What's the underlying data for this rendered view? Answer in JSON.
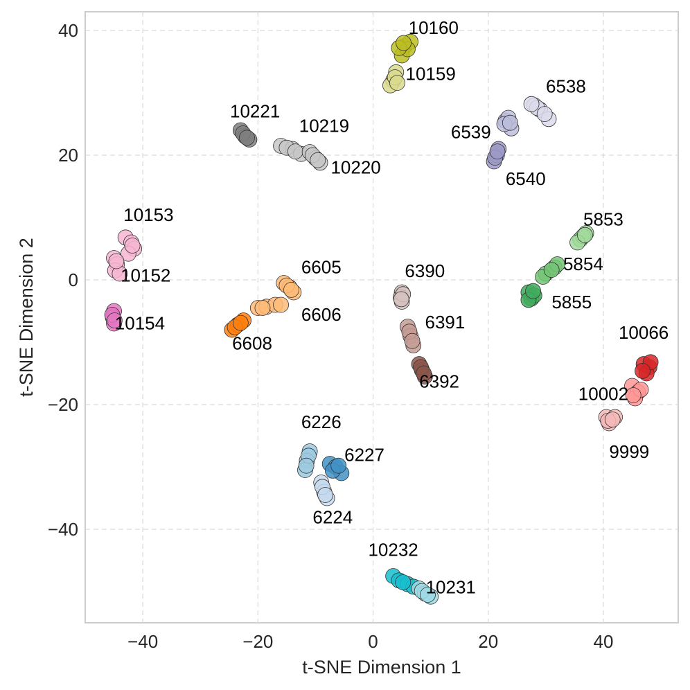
{
  "chart_data": {
    "type": "scatter",
    "title": "",
    "xlabel": "t-SNE Dimension 1",
    "ylabel": "t-SNE Dimension 2",
    "xlim": [
      -50,
      53
    ],
    "ylim": [
      -55,
      43
    ],
    "xticks": [
      -40,
      -20,
      0,
      20,
      40
    ],
    "yticks": [
      -40,
      -20,
      0,
      20,
      40
    ],
    "grid": true,
    "legend": "none",
    "series": [
      {
        "name": "10160",
        "color": "#bcbd22",
        "label_at": [
          10.5,
          40.2
        ],
        "points": [
          [
            5.5,
            37.5
          ],
          [
            6.5,
            38.2
          ],
          [
            5.0,
            36.0
          ],
          [
            6.0,
            37.0
          ],
          [
            4.5,
            37.2
          ],
          [
            5.3,
            38.0
          ]
        ]
      },
      {
        "name": "10159",
        "color": "#dbdb8d",
        "label_at": [
          10.0,
          32.8
        ],
        "points": [
          [
            3.5,
            32.0
          ],
          [
            4.0,
            33.3
          ],
          [
            3.0,
            31.2
          ],
          [
            3.8,
            32.5
          ],
          [
            4.2,
            31.6
          ]
        ]
      },
      {
        "name": "6538",
        "color": "#dadaeb",
        "label_at": [
          33.5,
          30.8
        ],
        "points": [
          [
            28.0,
            28.0
          ],
          [
            29.0,
            27.3
          ],
          [
            30.5,
            25.8
          ],
          [
            28.5,
            27.6
          ],
          [
            29.8,
            26.6
          ],
          [
            27.5,
            28.2
          ]
        ]
      },
      {
        "name": "6539",
        "color": "#bcbddc",
        "label_at": [
          17.0,
          23.5
        ],
        "points": [
          [
            23.0,
            25.5
          ],
          [
            24.0,
            24.3
          ],
          [
            23.5,
            26.0
          ],
          [
            22.8,
            25.0
          ],
          [
            23.8,
            25.2
          ]
        ]
      },
      {
        "name": "6540",
        "color": "#9e9ac8",
        "label_at": [
          26.5,
          16.0
        ],
        "points": [
          [
            21.0,
            19.0
          ],
          [
            21.5,
            20.0
          ],
          [
            21.8,
            21.0
          ],
          [
            21.2,
            19.6
          ],
          [
            21.6,
            20.6
          ]
        ]
      },
      {
        "name": "10221",
        "color": "#7f7f7f",
        "label_at": [
          -20.5,
          26.8
        ],
        "points": [
          [
            -23.0,
            24.0
          ],
          [
            -22.2,
            23.0
          ],
          [
            -21.5,
            22.5
          ],
          [
            -22.6,
            23.5
          ],
          [
            -21.9,
            22.8
          ]
        ]
      },
      {
        "name": "10219",
        "color": "#c7c7c7",
        "label_at": [
          -8.5,
          24.5
        ],
        "points": [
          [
            -16.0,
            21.5
          ],
          [
            -14.0,
            21.0
          ],
          [
            -12.5,
            20.2
          ],
          [
            -15.0,
            21.2
          ],
          [
            -13.5,
            20.6
          ]
        ]
      },
      {
        "name": "10220",
        "color": "#c7c7c7",
        "label_at": [
          -3.0,
          17.8
        ],
        "points": [
          [
            -11.0,
            20.5
          ],
          [
            -10.0,
            19.5
          ],
          [
            -9.2,
            18.8
          ],
          [
            -10.5,
            20.0
          ],
          [
            -9.6,
            19.2
          ]
        ]
      },
      {
        "name": "10153",
        "color": "#f7b6d2",
        "label_at": [
          -39.0,
          10.2
        ],
        "points": [
          [
            -43.0,
            6.8
          ],
          [
            -42.0,
            6.0
          ],
          [
            -41.5,
            5.0
          ],
          [
            -42.5,
            4.2
          ],
          [
            -41.8,
            5.5
          ]
        ]
      },
      {
        "name": "10152",
        "color": "#f7b6d2",
        "label_at": [
          -39.5,
          0.5
        ],
        "points": [
          [
            -45.0,
            3.5
          ],
          [
            -44.5,
            2.5
          ],
          [
            -44.8,
            1.5
          ],
          [
            -44.0,
            1.0
          ],
          [
            -44.6,
            3.0
          ]
        ]
      },
      {
        "name": "10154",
        "color": "#e377c2",
        "label_at": [
          -40.5,
          -7.2
        ],
        "points": [
          [
            -45.0,
            -5.0
          ],
          [
            -45.2,
            -6.0
          ],
          [
            -45.0,
            -7.0
          ],
          [
            -45.3,
            -5.6
          ],
          [
            -44.9,
            -6.5
          ]
        ]
      },
      {
        "name": "6605",
        "color": "#ffbb78",
        "label_at": [
          -9.0,
          1.8
        ],
        "points": [
          [
            -15.5,
            -0.5
          ],
          [
            -14.5,
            -1.2
          ],
          [
            -13.8,
            -2.0
          ],
          [
            -15.0,
            -0.9
          ],
          [
            -14.2,
            -1.6
          ]
        ]
      },
      {
        "name": "6606",
        "color": "#ffbb78",
        "label_at": [
          -9.0,
          -5.8
        ],
        "points": [
          [
            -20.0,
            -4.5
          ],
          [
            -18.5,
            -4.3
          ],
          [
            -17.0,
            -4.0
          ],
          [
            -16.0,
            -4.0
          ],
          [
            -19.2,
            -4.5
          ]
        ]
      },
      {
        "name": "6608",
        "color": "#ff7f0e",
        "label_at": [
          -21.0,
          -10.4
        ],
        "points": [
          [
            -24.5,
            -8.0
          ],
          [
            -23.5,
            -7.2
          ],
          [
            -22.5,
            -6.5
          ],
          [
            -24.0,
            -7.6
          ],
          [
            -23.0,
            -6.9
          ]
        ]
      },
      {
        "name": "6390",
        "color": "#d6c2be",
        "label_at": [
          9.0,
          1.2
        ],
        "points": [
          [
            5.0,
            -2.0
          ],
          [
            4.8,
            -2.8
          ],
          [
            5.0,
            -3.5
          ],
          [
            5.2,
            -2.3
          ],
          [
            4.9,
            -3.1
          ]
        ]
      },
      {
        "name": "6391",
        "color": "#c49c94",
        "label_at": [
          12.5,
          -7.0
        ],
        "points": [
          [
            6.0,
            -7.5
          ],
          [
            6.5,
            -9.0
          ],
          [
            7.0,
            -10.5
          ],
          [
            6.3,
            -8.3
          ],
          [
            6.8,
            -9.8
          ]
        ]
      },
      {
        "name": "6392",
        "color": "#8c564b",
        "label_at": [
          11.5,
          -16.5
        ],
        "points": [
          [
            8.0,
            -13.5
          ],
          [
            8.5,
            -14.5
          ],
          [
            9.0,
            -15.5
          ],
          [
            8.3,
            -14.0
          ],
          [
            8.8,
            -15.0
          ]
        ]
      },
      {
        "name": "5853",
        "color": "#a1d99b",
        "label_at": [
          40.0,
          9.5
        ],
        "points": [
          [
            36.0,
            6.5
          ],
          [
            37.0,
            7.5
          ],
          [
            36.5,
            7.0
          ],
          [
            35.5,
            6.0
          ],
          [
            36.8,
            7.2
          ]
        ]
      },
      {
        "name": "5854",
        "color": "#74c476",
        "label_at": [
          36.5,
          2.3
        ],
        "points": [
          [
            30.0,
            1.0
          ],
          [
            31.5,
            2.0
          ],
          [
            32.0,
            2.5
          ],
          [
            29.5,
            0.5
          ],
          [
            31.0,
            1.6
          ]
        ]
      },
      {
        "name": "5855",
        "color": "#41ab5d",
        "label_at": [
          34.5,
          -3.8
        ],
        "points": [
          [
            27.0,
            -2.0
          ],
          [
            27.5,
            -3.0
          ],
          [
            28.0,
            -2.5
          ],
          [
            27.0,
            -3.2
          ],
          [
            27.8,
            -1.8
          ]
        ]
      },
      {
        "name": "10066",
        "color": "#d62728",
        "label_at": [
          47.0,
          -8.7
        ],
        "points": [
          [
            47.0,
            -13.5
          ],
          [
            48.0,
            -14.0
          ],
          [
            47.5,
            -15.0
          ],
          [
            48.2,
            -13.2
          ],
          [
            46.8,
            -14.6
          ]
        ]
      },
      {
        "name": "10002",
        "color": "#ff9896",
        "label_at": [
          40.0,
          -18.5
        ],
        "points": [
          [
            45.0,
            -17.0
          ],
          [
            46.0,
            -18.0
          ],
          [
            45.5,
            -19.0
          ],
          [
            46.5,
            -17.6
          ],
          [
            45.2,
            -18.5
          ]
        ]
      },
      {
        "name": "9999",
        "color": "#f4b9b9",
        "label_at": [
          44.5,
          -27.8
        ],
        "points": [
          [
            40.5,
            -22.0
          ],
          [
            41.0,
            -23.0
          ],
          [
            42.0,
            -22.0
          ],
          [
            40.8,
            -22.6
          ],
          [
            41.6,
            -22.4
          ]
        ]
      },
      {
        "name": "6226",
        "color": "#9ecae1",
        "label_at": [
          -9.0,
          -23.0
        ],
        "points": [
          [
            -11.0,
            -27.5
          ],
          [
            -11.5,
            -29.0
          ],
          [
            -11.8,
            -30.5
          ],
          [
            -11.2,
            -28.2
          ],
          [
            -11.6,
            -29.8
          ]
        ]
      },
      {
        "name": "6227",
        "color": "#4292c6",
        "label_at": [
          -1.5,
          -28.3
        ],
        "points": [
          [
            -7.5,
            -29.5
          ],
          [
            -6.5,
            -30.0
          ],
          [
            -5.5,
            -31.0
          ],
          [
            -7.0,
            -30.6
          ],
          [
            -6.0,
            -29.8
          ]
        ]
      },
      {
        "name": "6224",
        "color": "#c6dbef",
        "label_at": [
          -7.0,
          -38.3
        ],
        "points": [
          [
            -9.0,
            -32.5
          ],
          [
            -8.5,
            -34.0
          ],
          [
            -8.0,
            -35.0
          ],
          [
            -8.8,
            -33.2
          ],
          [
            -8.3,
            -34.5
          ]
        ]
      },
      {
        "name": "10232",
        "color": "#17becf",
        "label_at": [
          3.5,
          -43.5
        ],
        "points": [
          [
            3.5,
            -47.5
          ],
          [
            4.5,
            -48.2
          ],
          [
            6.0,
            -48.8
          ],
          [
            7.0,
            -49.2
          ],
          [
            5.2,
            -48.5
          ]
        ]
      },
      {
        "name": "10231",
        "color": "#9edae5",
        "label_at": [
          13.5,
          -49.5
        ],
        "points": [
          [
            8.0,
            -49.5
          ],
          [
            9.0,
            -50.3
          ],
          [
            10.0,
            -50.8
          ],
          [
            8.5,
            -49.9
          ],
          [
            9.5,
            -50.5
          ]
        ]
      }
    ]
  }
}
